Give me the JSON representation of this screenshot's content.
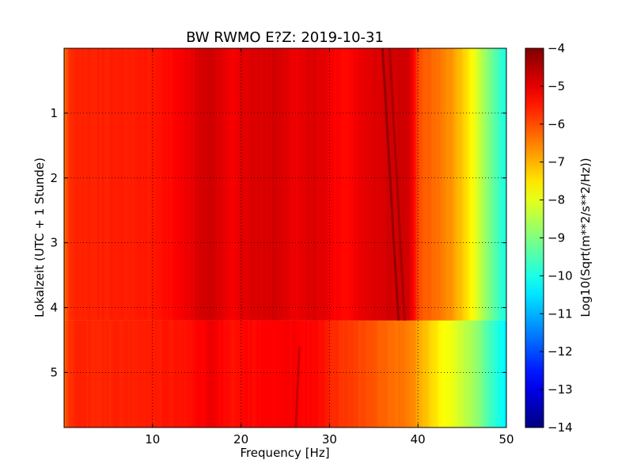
{
  "chart_data": {
    "type": "heatmap",
    "title": "BW RWMO E?Z: 2019-10-31",
    "xlabel": "Frequency [Hz]",
    "ylabel": "Lokalzeit (UTC + 1 Stunde)",
    "xlim": [
      0,
      50
    ],
    "ylim": [
      5.85,
      0
    ],
    "y_inverted": true,
    "grid": true,
    "x_ticks": [
      10,
      20,
      30,
      40,
      50
    ],
    "x_tick_labels": [
      "10",
      "20",
      "30",
      "40",
      "50"
    ],
    "y_ticks": [
      1,
      2,
      3,
      4,
      5
    ],
    "y_tick_labels": [
      "1",
      "2",
      "3",
      "4",
      "5"
    ],
    "colormap": "jet",
    "colorbar": {
      "label": "Log10(Sqrt(m**2/s**2/Hz))",
      "range": [
        -14,
        -4
      ],
      "ticks": [
        -4,
        -5,
        -6,
        -7,
        -8,
        -9,
        -10,
        -11,
        -12,
        -13,
        -14
      ],
      "tick_labels": [
        "−4",
        "−5",
        "−6",
        "−7",
        "−8",
        "−9",
        "−10",
        "−11",
        "−12",
        "−13",
        "−14"
      ]
    },
    "frequency_profile": {
      "frequencies": [
        0,
        0.5,
        1,
        2,
        5,
        8,
        10,
        12,
        14,
        15,
        16,
        16.5,
        17,
        18,
        19,
        20,
        22,
        24,
        26,
        28,
        29.5,
        30,
        32,
        34,
        36,
        37,
        38,
        39,
        39.5,
        40,
        41,
        42,
        43,
        44,
        45,
        46,
        47,
        48,
        49,
        50
      ],
      "levels_before_4_2h": [
        -6.3,
        -5.8,
        -5.6,
        -5.55,
        -5.55,
        -5.5,
        -5.45,
        -5.35,
        -5.1,
        -4.9,
        -4.85,
        -4.75,
        -4.85,
        -5.0,
        -5.15,
        -5.0,
        -4.9,
        -4.8,
        -5.1,
        -4.9,
        -5.0,
        -5.2,
        -5.3,
        -5.0,
        -4.85,
        -4.8,
        -4.8,
        -4.85,
        -5.2,
        -6.0,
        -6.2,
        -6.3,
        -6.5,
        -6.8,
        -7.2,
        -7.7,
        -8.3,
        -9.0,
        -9.6,
        -10.0
      ],
      "levels_after_4_2h": [
        -6.3,
        -5.8,
        -5.6,
        -5.6,
        -5.6,
        -5.55,
        -5.5,
        -5.45,
        -5.4,
        -5.3,
        -5.2,
        -5.1,
        -5.1,
        -5.3,
        -5.4,
        -5.3,
        -5.3,
        -5.25,
        -5.2,
        -5.3,
        -5.4,
        -5.6,
        -5.8,
        -6.0,
        -6.2,
        -6.3,
        -6.4,
        -6.5,
        -6.6,
        -6.9,
        -7.2,
        -7.5,
        -7.8,
        -8.0,
        -8.3,
        -8.6,
        -9.0,
        -9.5,
        -10.0,
        -10.4
      ]
    },
    "regime_change_time": 4.2,
    "drifting_lines": [
      {
        "start": [
          36.0,
          0.0
        ],
        "end": [
          37.8,
          4.2
        ],
        "level": -4.2
      },
      {
        "start": [
          36.8,
          0.0
        ],
        "end": [
          38.5,
          4.2
        ],
        "level": -4.4
      },
      {
        "start": [
          26.6,
          4.6
        ],
        "end": [
          26.2,
          5.85
        ],
        "level": -4.7
      }
    ]
  }
}
